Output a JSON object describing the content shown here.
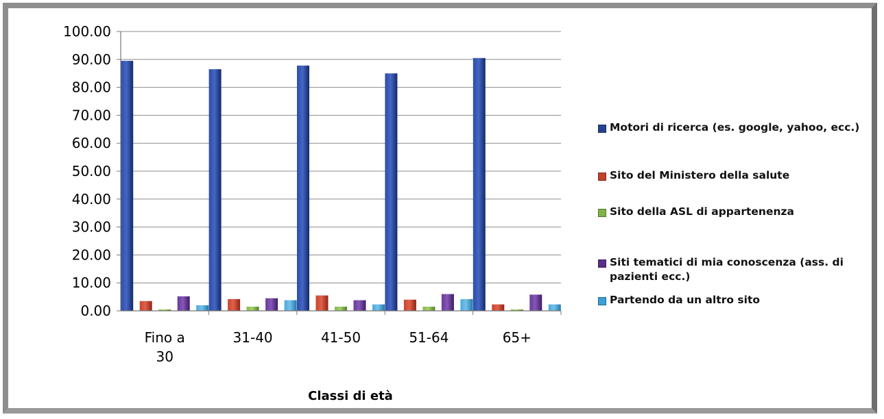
{
  "chart_data": {
    "type": "bar",
    "xlabel": "Classi di età",
    "ylabel": "",
    "ylim": [
      0,
      100
    ],
    "y_ticks": [
      "0.00",
      "10.00",
      "20.00",
      "30.00",
      "40.00",
      "50.00",
      "60.00",
      "70.00",
      "80.00",
      "90.00",
      "100.00"
    ],
    "categories": [
      "Fino a 30",
      "31-40",
      "41-50",
      "51-64",
      "65+"
    ],
    "grid": true,
    "legend_position": "right",
    "series": [
      {
        "name": "Motori di ricerca (es. google, yahoo, ecc.)",
        "color": "#1f3a8a",
        "values": [
          89.5,
          86.5,
          87.8,
          85.0,
          90.5
        ]
      },
      {
        "name": "Sito del Ministero della salute",
        "color": "#c0392b",
        "values": [
          3.5,
          4.2,
          5.5,
          4.0,
          2.3
        ]
      },
      {
        "name": "Sito della ASL di appartenenza",
        "color": "#7fb34a",
        "values": [
          0.5,
          1.5,
          1.5,
          1.5,
          0.5
        ]
      },
      {
        "name": "Siti tematici di mia conoscenza (ass. di pazienti ecc.)",
        "color": "#5b2c8a",
        "values": [
          5.2,
          4.5,
          3.8,
          6.0,
          5.8
        ]
      },
      {
        "name": "Partendo da un altro sito",
        "color": "#3aa0d8",
        "values": [
          2.0,
          3.8,
          2.3,
          4.2,
          2.3
        ]
      }
    ]
  }
}
